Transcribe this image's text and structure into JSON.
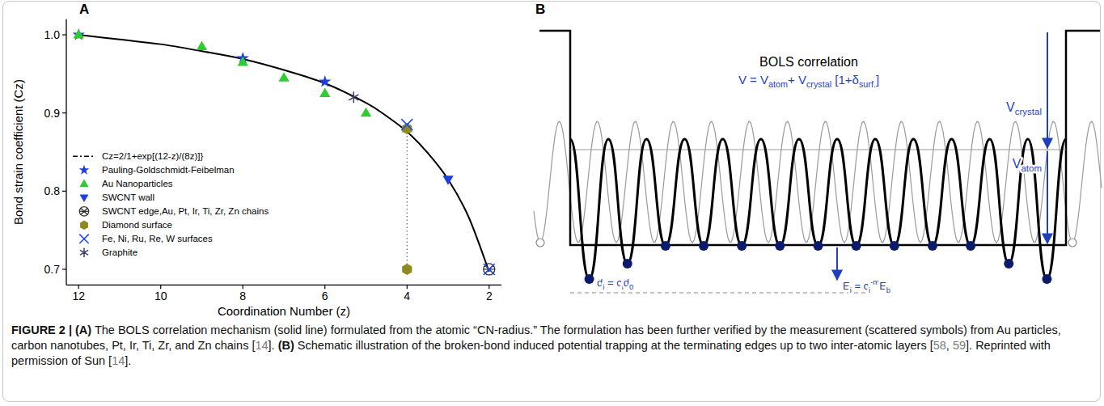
{
  "chart_data": {
    "type": "scatter",
    "panel_label": "A",
    "xlabel": "Coordination Number (z)",
    "ylabel": "Bond strain coefficient (Cz)",
    "xlim": [
      12.3,
      1.7
    ],
    "ylim": [
      0.68,
      1.02
    ],
    "xticks": [
      12,
      10,
      8,
      6,
      4,
      2
    ],
    "yticks": [
      0.7,
      0.8,
      0.9,
      {
        "value": 1,
        "label": "1.0"
      }
    ],
    "grid": false,
    "legend": "lower left",
    "series": [
      {
        "name": "Cz=2/1+exp[(12-z)/(8z)]}",
        "type": "line",
        "color": "#000000",
        "x": [
          12,
          11,
          10,
          9,
          8,
          7,
          6,
          5,
          4.5,
          4,
          3.5,
          3,
          2.5,
          2
        ],
        "values": [
          1.0,
          0.994,
          0.988,
          0.979,
          0.969,
          0.955,
          0.938,
          0.913,
          0.896,
          0.876,
          0.849,
          0.815,
          0.767,
          0.697
        ]
      },
      {
        "name": "Pauling-Goldschmidt-Feibelman",
        "type": "scatter",
        "marker": "star",
        "color": "#1e3fdc",
        "x": [
          12,
          8,
          6
        ],
        "values": [
          1.0,
          0.97,
          0.94
        ]
      },
      {
        "name": "Au Nanoparticles",
        "type": "scatter",
        "marker": "triangle-up",
        "color": "#2ecc2e",
        "x": [
          12,
          9,
          8,
          7,
          6,
          5,
          4
        ],
        "values": [
          1.0,
          0.985,
          0.965,
          0.945,
          0.925,
          0.9,
          0.88
        ]
      },
      {
        "name": "SWCNT wall",
        "type": "scatter",
        "marker": "triangle-down",
        "color": "#1e3fdc",
        "x": [
          3
        ],
        "values": [
          0.815
        ]
      },
      {
        "name": "SWCNT edge,Au, Pt, Ir, Ti, Zr, Zn chains",
        "type": "scatter",
        "marker": "crossed-circle",
        "color": "#333333",
        "x": [
          2
        ],
        "values": [
          0.7
        ]
      },
      {
        "name": "Diamond surface",
        "type": "scatter",
        "marker": "hexagon",
        "color": "#8f8a1e",
        "line_style": "dotted",
        "x": [
          4,
          4
        ],
        "values": [
          0.88,
          0.7
        ]
      },
      {
        "name": "Fe, Ni, Ru, Re, W surfaces",
        "type": "scatter",
        "marker": "x",
        "color": "#2a4ae8",
        "x": [
          4,
          2
        ],
        "values": [
          0.885,
          0.7
        ]
      },
      {
        "name": "Graphite",
        "type": "scatter",
        "marker": "asterisk",
        "color": "#3a3a6e",
        "x": [
          5.3
        ],
        "values": [
          0.92
        ]
      }
    ]
  },
  "diagram": {
    "panel_label": "B",
    "title": "BOLS correlation",
    "equation": [
      {
        "text": "V = V"
      },
      {
        "text": "atom",
        "sub": true
      },
      {
        "text": "+ V"
      },
      {
        "text": "crystal",
        "sub": true
      },
      {
        "text": " [1+δ"
      },
      {
        "text": "surf.",
        "sub": true
      },
      {
        "text": "]"
      }
    ],
    "crystal_label": [
      {
        "text": "V"
      },
      {
        "text": "crystal",
        "sub": true
      }
    ],
    "atom_label": [
      {
        "text": "V"
      },
      {
        "text": "atom",
        "sub": true
      }
    ],
    "bond_length": [
      {
        "text": "d"
      },
      {
        "text": "i",
        "sub": true
      },
      {
        "text": " = c"
      },
      {
        "text": "i",
        "sub": true
      },
      {
        "text": "d"
      },
      {
        "text": "0",
        "sub": true
      }
    ],
    "bond_energy": [
      {
        "text": "E"
      },
      {
        "text": "i",
        "sub": true
      },
      {
        "text": " = c"
      },
      {
        "text": "i",
        "sub": true
      },
      {
        "text": "-m",
        "sup": true
      },
      {
        "text": "E"
      },
      {
        "text": "b",
        "sub": true
      }
    ]
  },
  "caption": {
    "segments": [
      {
        "text": "FIGURE 2 | ",
        "bold": true
      },
      {
        "text": "(A)",
        "bold": true
      },
      {
        "text": " The BOLS correlation mechanism (solid line) formulated from the atomic “CN-radius.” The formulation has been further verified by the measurement (scattered symbols) from Au particles, carbon nanotubes, Pt, Ir, Ti, Zr, and Zn chains ["
      },
      {
        "text": "14",
        "cite": true
      },
      {
        "text": "]. "
      },
      {
        "text": "(B)",
        "bold": true
      },
      {
        "text": " Schematic illustration of the broken-bond induced potential trapping at the terminating edges up to two inter-atomic layers ["
      },
      {
        "text": "58",
        "cite": true
      },
      {
        "text": ", "
      },
      {
        "text": "59",
        "cite": true
      },
      {
        "text": "]. Reprinted with permission of Sun ["
      },
      {
        "text": "14",
        "cite": true
      },
      {
        "text": "]."
      }
    ]
  }
}
